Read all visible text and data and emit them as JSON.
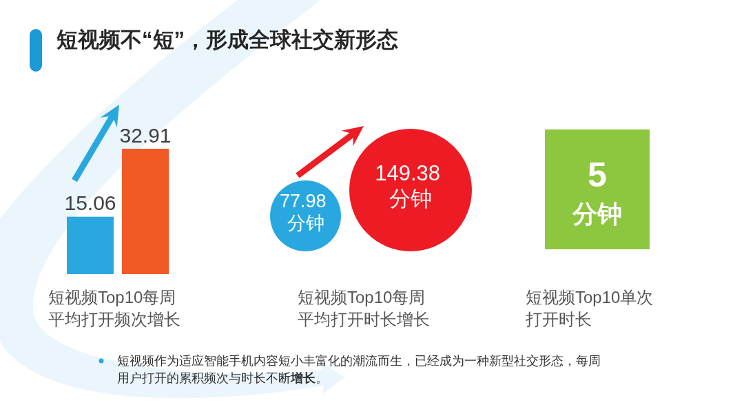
{
  "chart_data": [
    {
      "type": "bar",
      "title": "短视频不“短”，形成全球社交新形态",
      "xlabel": "短视频Top10每周平均打开频次增长",
      "categories": [
        null,
        null
      ],
      "values": [
        15.06,
        32.91
      ],
      "colors": [
        "#29a8e0",
        "#f15a24"
      ],
      "data_labels": true,
      "annotations": [
        "短视频作为适应智能手机内容短小丰富化的潮流而生，已经成为一种新型社交形态，每周用户打开的累积频次与时长不断**增长**。"
      ]
    },
    {
      "type": "other",
      "xlabel": "短视频Top10每周平均打开时长增长",
      "colors": [
        "#29a8e0",
        "#ed1c24"
      ],
      "annotations": [
        "77.98 分钟",
        "149.38 分钟"
      ]
    },
    {
      "type": "other",
      "xlabel": "短视频Top10单次打开时长",
      "annotations": [
        "5",
        "分钟"
      ],
      "color": "#8dc63f"
    }
  ]
}
